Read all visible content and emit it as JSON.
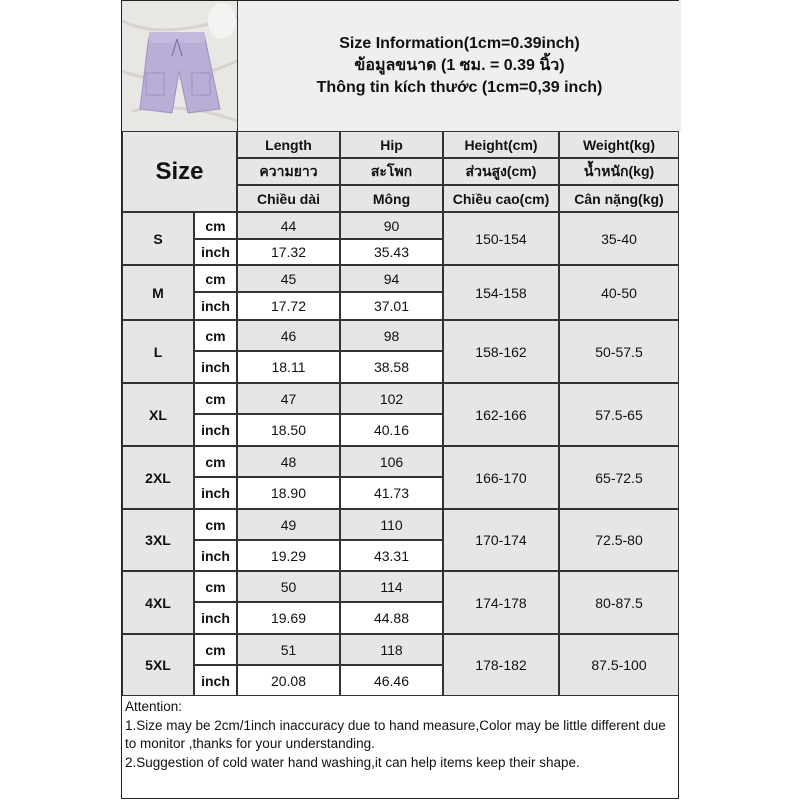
{
  "title": {
    "line1": "Size Information(1cm=0.39inch)",
    "line2": "ข้อมูลขนาด (1 ซม. = 0.39 นิ้ว)",
    "line3": "Thông tin kích thước (1cm=0,39 inch)"
  },
  "size_header": "Size",
  "columns": [
    {
      "en": "Length",
      "th": "ความยาว",
      "vi": "Chiều dài"
    },
    {
      "en": "Hip",
      "th": "สะโพก",
      "vi": "Mông"
    },
    {
      "en": "Height(cm)",
      "th": "ส่วนสูง(cm)",
      "vi": "Chiều cao(cm)"
    },
    {
      "en": "Weight(kg)",
      "th": "น้ำหนัก(kg)",
      "vi": "Cân nặng(kg)"
    }
  ],
  "units": {
    "cm": "cm",
    "inch": "inch"
  },
  "rows": [
    {
      "size": "S",
      "length_cm": "44",
      "hip_cm": "90",
      "length_in": "17.32",
      "hip_in": "35.43",
      "height": "150-154",
      "weight": "35-40"
    },
    {
      "size": "M",
      "length_cm": "45",
      "hip_cm": "94",
      "length_in": "17.72",
      "hip_in": "37.01",
      "height": "154-158",
      "weight": "40-50"
    },
    {
      "size": "L",
      "length_cm": "46",
      "hip_cm": "98",
      "length_in": "18.11",
      "hip_in": "38.58",
      "height": "158-162",
      "weight": "50-57.5"
    },
    {
      "size": "XL",
      "length_cm": "47",
      "hip_cm": "102",
      "length_in": "18.50",
      "hip_in": "40.16",
      "height": "162-166",
      "weight": "57.5-65"
    },
    {
      "size": "2XL",
      "length_cm": "48",
      "hip_cm": "106",
      "length_in": "18.90",
      "hip_in": "41.73",
      "height": "166-170",
      "weight": "65-72.5"
    },
    {
      "size": "3XL",
      "length_cm": "49",
      "hip_cm": "110",
      "length_in": "19.29",
      "hip_in": "43.31",
      "height": "170-174",
      "weight": "72.5-80"
    },
    {
      "size": "4XL",
      "length_cm": "50",
      "hip_cm": "114",
      "length_in": "19.69",
      "hip_in": "44.88",
      "height": "174-178",
      "weight": "80-87.5"
    },
    {
      "size": "5XL",
      "length_cm": "51",
      "hip_cm": "118",
      "length_in": "20.08",
      "hip_in": "46.46",
      "height": "178-182",
      "weight": "87.5-100"
    }
  ],
  "attention": {
    "heading": "Attention:",
    "note1": "1.Size may be 2cm/1inch inaccuracy due to hand measure,Color may be little different due to monitor ,thanks for your understanding.",
    "note2": "2.Suggestion of cold water hand washing,it can help items keep their shape."
  },
  "colors": {
    "cell_grey": "#e6e6e6",
    "title_bg": "#efefef",
    "product": "#b9aed6"
  }
}
